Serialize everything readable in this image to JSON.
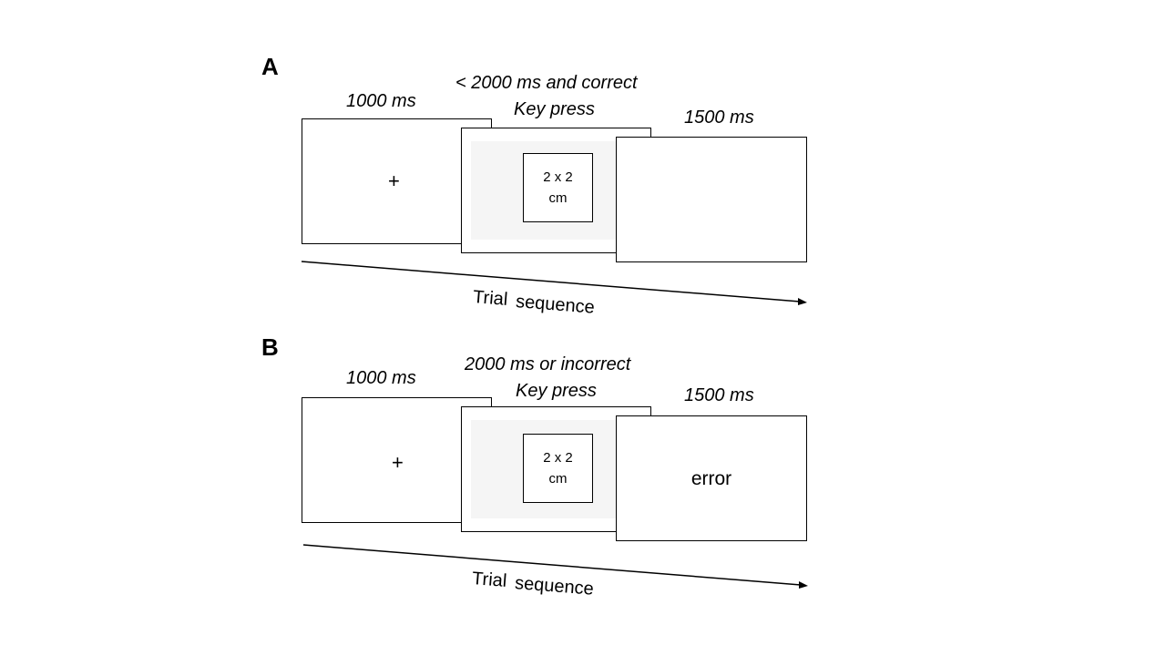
{
  "panels": [
    {
      "letter": "A",
      "fixation_duration": "1000 ms",
      "stimulus_condition": "< 2000 ms and correct",
      "stimulus_response": "Key press",
      "feedback_duration": "1500 ms",
      "fixation_symbol": "+",
      "stimulus_size_line1": "2 x 2",
      "stimulus_size_line2": "cm",
      "feedback_text": "",
      "timeline_word1": "Trial",
      "timeline_word2": "sequence"
    },
    {
      "letter": "B",
      "fixation_duration": "1000 ms",
      "stimulus_condition": "2000 ms or incorrect",
      "stimulus_response": "Key press",
      "feedback_duration": "1500 ms",
      "fixation_symbol": "+",
      "stimulus_size_line1": "2 x 2",
      "stimulus_size_line2": "cm",
      "feedback_text": "error",
      "timeline_word1": "Trial",
      "timeline_word2": "sequence"
    }
  ],
  "colors": {
    "stroke": "#000000",
    "stimulus_field": "#f5f5f5",
    "background": "#ffffff"
  }
}
